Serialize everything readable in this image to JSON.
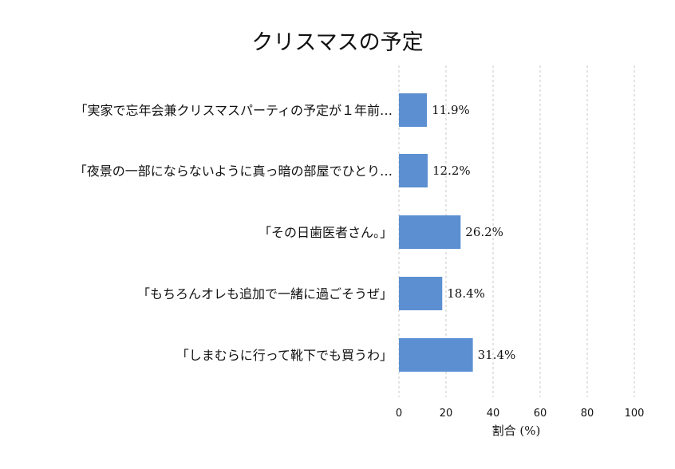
{
  "chart_data": {
    "type": "bar",
    "orientation": "horizontal",
    "title": "クリスマスの予定",
    "xlabel": "割合 (%)",
    "ylabel": "",
    "xlim": [
      0,
      100
    ],
    "xticks": [
      "0",
      "20",
      "40",
      "60",
      "80",
      "100"
    ],
    "grid": "vertical-dashed",
    "bar_color": "#5b8fd1",
    "categories": [
      "「実家で忘年会兼クリスマスパーティの予定が１年前…",
      "「夜景の一部にならないように真っ暗の部屋でひとり…",
      "「その日歯医者さん。」",
      "「もちろんオレも追加で一緒に過ごそうぜ」",
      "「しまむらに行って靴下でも買うわ」"
    ],
    "values": [
      11.9,
      12.2,
      26.2,
      18.4,
      31.4
    ],
    "value_labels": [
      "11.9%",
      "12.2%",
      "26.2%",
      "18.4%",
      "31.4%"
    ]
  }
}
